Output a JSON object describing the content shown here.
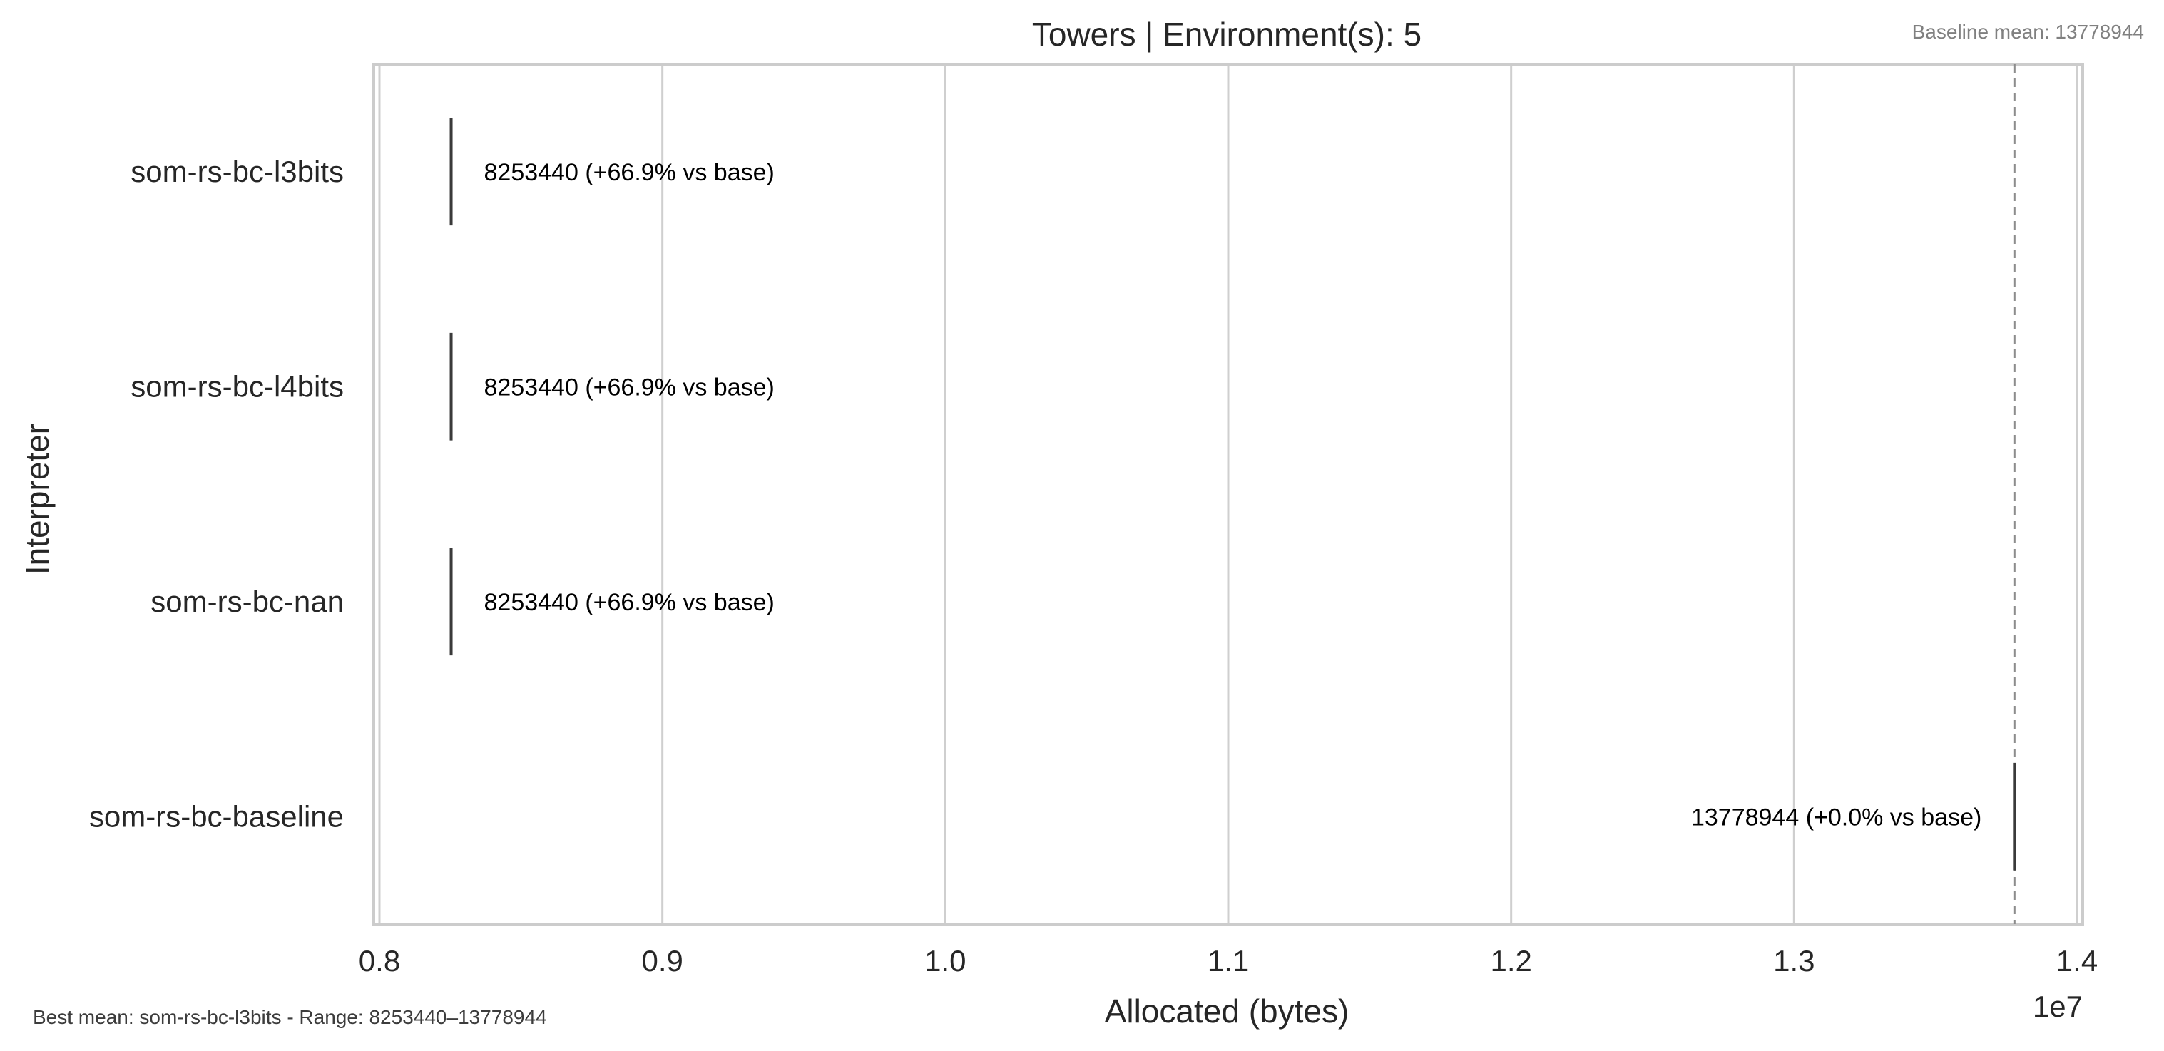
{
  "chart_data": {
    "type": "bar",
    "orientation": "horizontal",
    "title": "Towers | Environment(s): 5",
    "xlabel": "Allocated (bytes)",
    "ylabel": "Interpreter",
    "x_scale_label": "1e7",
    "xlim": [
      8000000,
      14000000
    ],
    "x_ticks": [
      8000000,
      9000000,
      10000000,
      11000000,
      12000000,
      13000000,
      14000000
    ],
    "x_tick_labels": [
      "0.8",
      "0.9",
      "1.0",
      "1.1",
      "1.2",
      "1.3",
      "1.4"
    ],
    "grid": "vertical",
    "categories": [
      "som-rs-bc-l3bits",
      "som-rs-bc-l4bits",
      "som-rs-bc-nan",
      "som-rs-bc-baseline"
    ],
    "values": [
      8253440,
      8253440,
      8253440,
      13778944
    ],
    "data_labels": [
      "8253440  (+66.9% vs base)",
      "8253440  (+66.9% vs base)",
      "8253440  (+66.9% vs base)",
      "13778944  (+0.0% vs base)"
    ],
    "baseline": {
      "value": 13778944,
      "label": "Baseline mean: 13778944",
      "style": "dashed"
    },
    "footnote": "Best mean: som-rs-bc-l3bits - Range: 8253440–13778944",
    "colors": {
      "mark": "#3a3a3a",
      "grid": "#cfcfcf",
      "frame": "#cccccc",
      "baseline": "#8c8c8c"
    }
  }
}
